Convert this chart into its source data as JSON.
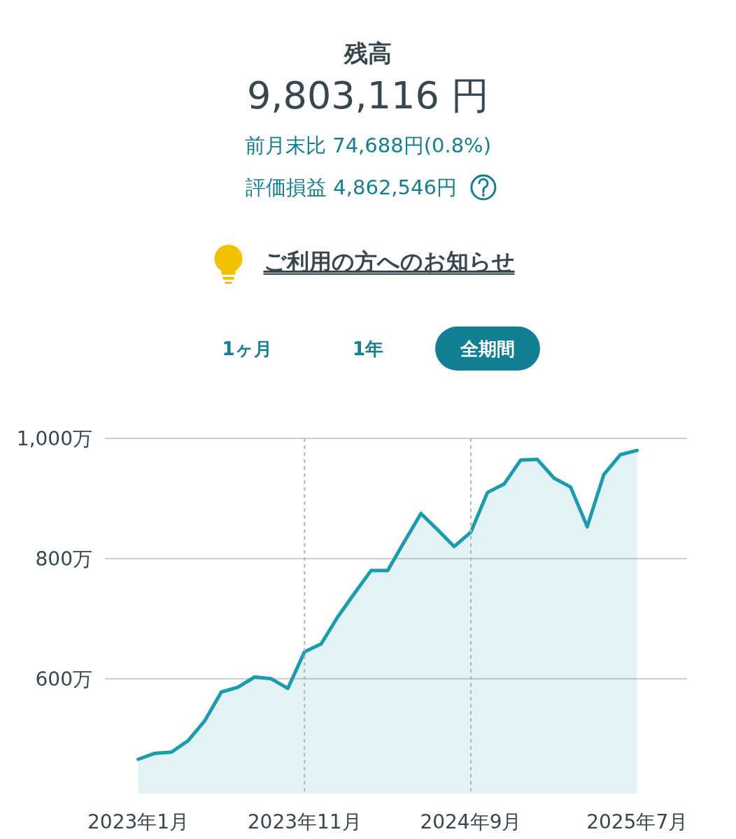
{
  "chart_data": {
    "type": "area",
    "title": "残高",
    "subtitle": "9,803,116 円",
    "annotations": [
      "前月末比 74,688円(0.8%)",
      "評価損益 4,862,546円",
      "ご利用の方へのお知らせ",
      "1ヶ月",
      "1年",
      "全期間"
    ],
    "x": [
      "2023-01",
      "2023-02",
      "2023-03",
      "2023-04",
      "2023-05",
      "2023-06",
      "2023-07",
      "2023-08",
      "2023-09",
      "2023-10",
      "2023-11",
      "2023-12",
      "2024-01",
      "2024-02",
      "2024-03",
      "2024-04",
      "2024-05",
      "2024-06",
      "2024-07",
      "2024-08",
      "2024-09",
      "2024-10",
      "2024-11",
      "2024-12",
      "2025-01",
      "2025-02",
      "2025-03",
      "2025-04",
      "2025-05",
      "2025-06",
      "2025-07"
    ],
    "series": [
      {
        "color": "#1a9bb0",
        "values": [
          466,
          476,
          478,
          497,
          530,
          578,
          586,
          603,
          600,
          584,
          645,
          658,
          703,
          742,
          780,
          780,
          828,
          875,
          848,
          820,
          844,
          910,
          924,
          964,
          965,
          934,
          919,
          853,
          940,
          973,
          980
        ]
      }
    ],
    "xlim": [
      "2022-11",
      "2025-10"
    ],
    "ylim": [
      409,
      1000
    ],
    "xticks": [
      {
        "value": "2023-01",
        "label": "2023年1月"
      },
      {
        "value": "2023-11",
        "label": "2023年11月"
      },
      {
        "value": "2024-09",
        "label": "2024年9月"
      },
      {
        "value": "2025-07",
        "label": "2025年7月"
      }
    ],
    "yticks": [
      {
        "value": 600,
        "label": "600万"
      },
      {
        "value": 800,
        "label": "800万"
      },
      {
        "value": 1000,
        "label": "1,000万"
      }
    ],
    "ref_lines": [
      {
        "axis": "x",
        "value": "2023-11",
        "line_style": "dashed",
        "color": "#b0b4b8"
      },
      {
        "axis": "x",
        "value": "2024-09",
        "line_style": "dashed",
        "color": "#b0b4b8"
      }
    ],
    "grid": "y",
    "marker": "none",
    "line_style": "solid"
  }
}
